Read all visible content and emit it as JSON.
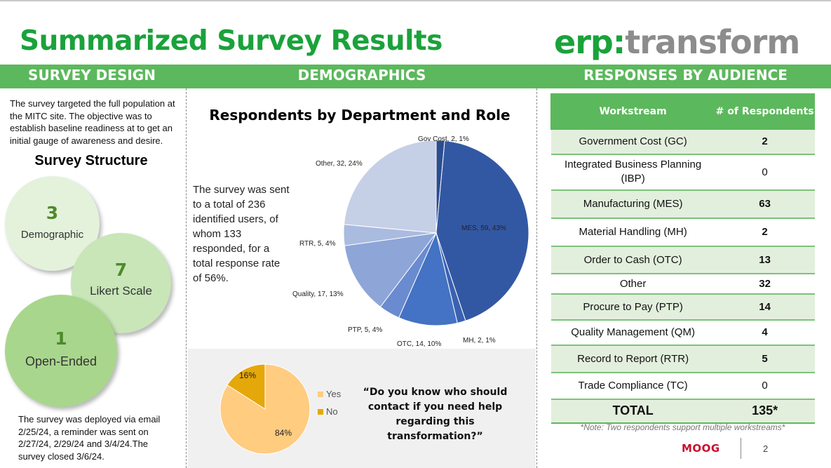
{
  "header": {
    "title": "Summarized Survey Results",
    "logo": {
      "prefix": "erp",
      "separator": ":",
      "suffix": "transform"
    }
  },
  "sections": {
    "design": "SURVEY DESIGN",
    "demographics": "DEMOGRAPHICS",
    "audience": "RESPONSES BY AUDIENCE"
  },
  "design": {
    "intro": "The survey targeted the full population at the MITC site. The objective was to establish baseline readiness at to get an initial gauge of awareness and desire.",
    "structure_title": "Survey Structure",
    "circles": [
      {
        "number": "3",
        "label": "Demographic",
        "color": "#e4f2dc"
      },
      {
        "number": "7",
        "label": "Likert Scale",
        "color": "#c8e6b8"
      },
      {
        "number": "1",
        "label": "Open-Ended",
        "color": "#a9d68d"
      }
    ],
    "deployment": "The survey was deployed via email 2/25/24, a reminder was sent on 2/27/24, 2/29/24 and 3/4/24.The survey closed 3/6/24."
  },
  "demographics": {
    "rate_text": "The survey was sent to a total of 236 identified users, of whom 133 responded, for a total response rate of 56%.",
    "question": "“Do you know who should contact if you need help regarding this transformation?”"
  },
  "chart_data": [
    {
      "type": "pie",
      "title": "Respondents by Department and Role",
      "slices": [
        {
          "name": "Gov Cost",
          "value": 2,
          "percent": "1%",
          "label": "Gov Cost, 2, 1%",
          "color": "#2c4e8e"
        },
        {
          "name": "MES",
          "value": 59,
          "percent": "43%",
          "label": "MES, 59, 43%",
          "color": "#3358a3"
        },
        {
          "name": "MH",
          "value": 2,
          "percent": "1%",
          "label": "MH, 2, 1%",
          "color": "#3a62b2"
        },
        {
          "name": "OTC",
          "value": 14,
          "percent": "10%",
          "label": "OTC, 14, 10%",
          "color": "#4472c4"
        },
        {
          "name": "PTP",
          "value": 5,
          "percent": "4%",
          "label": "PTP, 5, 4%",
          "color": "#6a8bcf"
        },
        {
          "name": "Quality",
          "value": 17,
          "percent": "13%",
          "label": "Quality, 17, 13%",
          "color": "#8ea5d8"
        },
        {
          "name": "RTR",
          "value": 5,
          "percent": "4%",
          "label": "RTR, 5, 4%",
          "color": "#aabbe0"
        },
        {
          "name": "Other",
          "value": 32,
          "percent": "24%",
          "label": "Other, 32, 24%",
          "color": "#c5cfe6"
        }
      ]
    },
    {
      "type": "pie",
      "title": "",
      "slices": [
        {
          "name": "Yes",
          "percent": 84,
          "label": "84%",
          "color": "#ffcc80"
        },
        {
          "name": "No",
          "percent": 16,
          "label": "16%",
          "color": "#e5a80a"
        }
      ]
    }
  ],
  "table": {
    "headers": [
      "Workstream",
      "# of Respondents"
    ],
    "rows": [
      {
        "name": "Government Cost (GC)",
        "count": "2"
      },
      {
        "name": "Integrated Business Planning (IBP)",
        "count": "0"
      },
      {
        "name": "Manufacturing (MES)",
        "count": "63"
      },
      {
        "name": "Material Handling (MH)",
        "count": "2"
      },
      {
        "name": "Order to Cash (OTC)",
        "count": "13"
      },
      {
        "name": "Other",
        "count": "32"
      },
      {
        "name": "Procure to Pay (PTP)",
        "count": "14"
      },
      {
        "name": "Quality Management (QM)",
        "count": "4"
      },
      {
        "name": "Record to Report (RTR)",
        "count": "5"
      },
      {
        "name": "Trade Compliance (TC)",
        "count": "0"
      }
    ],
    "total_label": "TOTAL",
    "total_count": "135*",
    "note": "*Note: Two respondents support multiple workstreams*"
  },
  "footer": {
    "brand": "MOOG",
    "page": "2"
  }
}
